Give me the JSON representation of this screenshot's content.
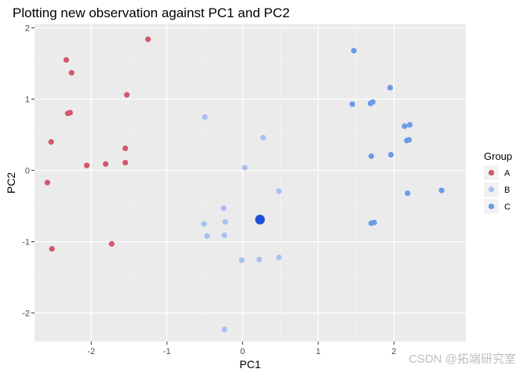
{
  "chart_data": {
    "type": "scatter",
    "title": "Plotting new observation against PC1 and PC2",
    "xlabel": "PC1",
    "ylabel": "PC2",
    "xlim": [
      -2.75,
      2.95
    ],
    "ylim": [
      -2.4,
      2.05
    ],
    "x_ticks": [
      -2,
      -1,
      0,
      1,
      2
    ],
    "y_ticks": [
      -2,
      -1,
      0,
      1,
      2
    ],
    "grid": true,
    "legend_title": "Group",
    "legend_position": "right",
    "series": [
      {
        "name": "A",
        "color": "#d4566b",
        "points": [
          {
            "x": -1.25,
            "y": 1.84
          },
          {
            "x": -2.33,
            "y": 1.55
          },
          {
            "x": -2.26,
            "y": 1.37
          },
          {
            "x": -1.53,
            "y": 1.06
          },
          {
            "x": -2.28,
            "y": 0.81
          },
          {
            "x": -2.31,
            "y": 0.8
          },
          {
            "x": -2.53,
            "y": 0.4
          },
          {
            "x": -1.55,
            "y": 0.31
          },
          {
            "x": -2.06,
            "y": 0.07
          },
          {
            "x": -1.81,
            "y": 0.09
          },
          {
            "x": -1.55,
            "y": 0.11
          },
          {
            "x": -2.58,
            "y": -0.17
          },
          {
            "x": -1.73,
            "y": -1.03
          },
          {
            "x": -2.52,
            "y": -1.1
          }
        ]
      },
      {
        "name": "B",
        "color": "#a9bff2",
        "points": [
          {
            "x": -0.5,
            "y": 0.75
          },
          {
            "x": 0.27,
            "y": 0.46
          },
          {
            "x": 0.03,
            "y": 0.04
          },
          {
            "x": 0.48,
            "y": -0.29
          },
          {
            "x": -0.25,
            "y": -0.53
          },
          {
            "x": -0.23,
            "y": -0.72
          },
          {
            "x": -0.51,
            "y": -0.75
          },
          {
            "x": -0.47,
            "y": -0.92
          },
          {
            "x": -0.24,
            "y": -0.91
          },
          {
            "x": 0.48,
            "y": -1.22
          },
          {
            "x": 0.22,
            "y": -1.25
          },
          {
            "x": -0.01,
            "y": -1.26
          },
          {
            "x": -0.24,
            "y": -2.23
          }
        ]
      },
      {
        "name": "C",
        "color": "#6b9be8",
        "points": [
          {
            "x": 1.47,
            "y": 1.68
          },
          {
            "x": 1.95,
            "y": 1.16
          },
          {
            "x": 1.45,
            "y": 0.93
          },
          {
            "x": 1.69,
            "y": 0.94
          },
          {
            "x": 1.72,
            "y": 0.96
          },
          {
            "x": 2.14,
            "y": 0.62
          },
          {
            "x": 2.21,
            "y": 0.64
          },
          {
            "x": 2.17,
            "y": 0.42
          },
          {
            "x": 2.2,
            "y": 0.43
          },
          {
            "x": 1.7,
            "y": 0.2
          },
          {
            "x": 1.96,
            "y": 0.22
          },
          {
            "x": 2.63,
            "y": -0.28
          },
          {
            "x": 2.18,
            "y": -0.32
          },
          {
            "x": 1.7,
            "y": -0.74
          },
          {
            "x": 1.74,
            "y": -0.73
          }
        ]
      }
    ],
    "new_observation": {
      "x": 0.23,
      "y": -0.69,
      "color": "#1f50d6"
    }
  },
  "watermark": "CSDN @拓端研究室"
}
